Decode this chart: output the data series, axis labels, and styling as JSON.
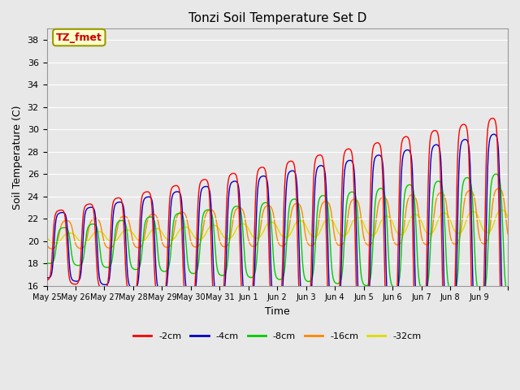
{
  "title": "Tonzi Soil Temperature Set D",
  "xlabel": "Time",
  "ylabel": "Soil Temperature (C)",
  "ylim": [
    16,
    39
  ],
  "yticks": [
    16,
    18,
    20,
    22,
    24,
    26,
    28,
    30,
    32,
    34,
    36,
    38
  ],
  "annotation_text": "TZ_fmet",
  "annotation_color": "#cc0000",
  "annotation_bg": "#ffffcc",
  "annotation_border": "#999900",
  "line_colors": {
    "-2cm": "#ff0000",
    "-4cm": "#0000cc",
    "-8cm": "#00cc00",
    "-16cm": "#ff8800",
    "-32cm": "#dddd00"
  },
  "bg_color": "#e8e8e8",
  "plot_bg_color": "#e8e8e8",
  "legend_colors": [
    "#ff0000",
    "#0000cc",
    "#00cc00",
    "#ff8800",
    "#dddd00"
  ],
  "legend_labels": [
    "-2cm",
    "-4cm",
    "-8cm",
    "-16cm",
    "-32cm"
  ],
  "x_tick_labels": [
    "May 25",
    "May 26",
    "May 27",
    "May 28",
    "May 29",
    "May 30",
    "May 31",
    "Jun 1",
    "Jun 2",
    "Jun 3",
    "Jun 4",
    "Jun 5",
    "Jun 6",
    "Jun 7",
    "Jun 8",
    "Jun 9"
  ],
  "n_days": 16,
  "points_per_day": 96
}
